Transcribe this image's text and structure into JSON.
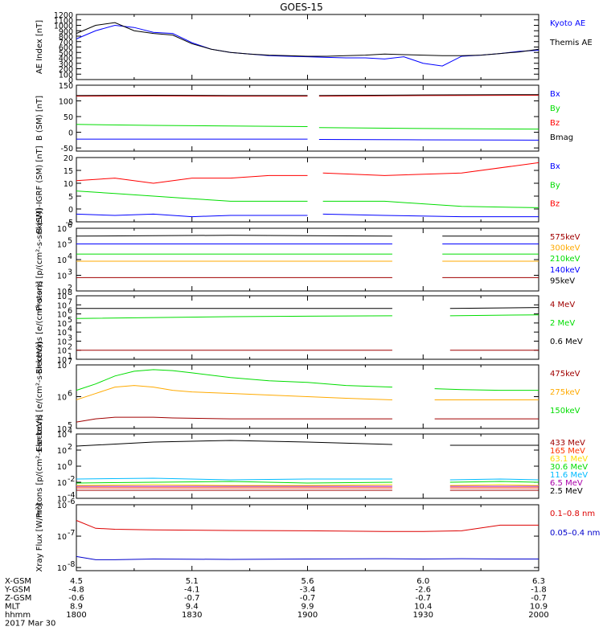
{
  "title": "GOES-15",
  "footer": {
    "rows": [
      {
        "label": "X-GSM",
        "values": [
          "4.5",
          "5.1",
          "5.6",
          "6.0",
          "6.3"
        ]
      },
      {
        "label": "Y-GSM",
        "values": [
          "-4.8",
          "-4.1",
          "-3.4",
          "-2.6",
          "-1.8"
        ]
      },
      {
        "label": "Z-GSM",
        "values": [
          "-0.6",
          "-0.7",
          "-0.7",
          "-0.7",
          "-0.7"
        ]
      },
      {
        "label": "MLT",
        "values": [
          "8.9",
          "9.4",
          "9.9",
          "10.4",
          "10.9"
        ]
      },
      {
        "label": "hhmm",
        "values": [
          "1800",
          "1830",
          "1900",
          "1930",
          "2000"
        ]
      }
    ],
    "date": "2017 Mar 30"
  },
  "chart_data": [
    {
      "type": "line",
      "ylabel": "AE Index [nT]",
      "ylim": [
        0,
        1200
      ],
      "yticks": [
        "0",
        "100",
        "200",
        "300",
        "400",
        "500",
        "600",
        "700",
        "800",
        "900",
        "1000",
        "1100",
        "1200"
      ],
      "x_minutes": [
        0,
        5,
        10,
        15,
        20,
        25,
        30,
        35,
        40,
        45,
        50,
        55,
        60,
        65,
        70,
        75,
        80,
        85,
        90,
        95,
        100,
        105,
        110,
        115,
        120
      ],
      "series": [
        {
          "name": "Kyoto AE",
          "color": "#0000ff",
          "values": [
            750,
            900,
            1000,
            960,
            870,
            850,
            680,
            560,
            500,
            470,
            440,
            430,
            420,
            410,
            400,
            400,
            380,
            420,
            300,
            250,
            430,
            450,
            480,
            520,
            540
          ]
        },
        {
          "name": "Themis AE",
          "color": "#000000",
          "values": [
            850,
            1000,
            1050,
            900,
            850,
            820,
            660,
            560,
            500,
            470,
            450,
            440,
            430,
            430,
            440,
            450,
            470,
            460,
            450,
            440,
            440,
            450,
            480,
            510,
            560
          ]
        }
      ]
    },
    {
      "type": "line",
      "ylabel": "B (SM) [nT]",
      "ylim": [
        -60,
        150
      ],
      "yticks": [
        "-50",
        "0",
        "50",
        "100",
        "150"
      ],
      "gap_minutes": [
        60,
        63
      ],
      "x_minutes": [
        0,
        20,
        40,
        60,
        63,
        90,
        120
      ],
      "series": [
        {
          "name": "Bx",
          "color": "#0000ff",
          "values": [
            -22,
            -22,
            -22,
            -22,
            -23,
            -24,
            -25
          ]
        },
        {
          "name": "By",
          "color": "#00dd00",
          "values": [
            25,
            22,
            20,
            18,
            15,
            12,
            10
          ]
        },
        {
          "name": "Bz",
          "color": "#ff0000",
          "values": [
            115,
            116,
            115,
            115,
            115,
            117,
            118
          ]
        },
        {
          "name": "Bmag",
          "color": "#000000",
          "values": [
            117,
            118,
            117,
            117,
            117,
            119,
            120
          ]
        }
      ]
    },
    {
      "type": "line",
      "ylabel": "B (SM)-IGRF (SM) [nT]",
      "ylim": [
        -5,
        20
      ],
      "yticks": [
        "-5",
        "0",
        "5",
        "10",
        "15",
        "20"
      ],
      "gap_minutes": [
        60,
        64
      ],
      "x_minutes": [
        0,
        10,
        20,
        30,
        40,
        50,
        60,
        64,
        80,
        100,
        120
      ],
      "series": [
        {
          "name": "Bx",
          "color": "#0000ff",
          "values": [
            -2,
            -2.5,
            -2,
            -3,
            -2.5,
            -2.5,
            -2.5,
            -2,
            -2.5,
            -3,
            -3
          ]
        },
        {
          "name": "By",
          "color": "#00dd00",
          "values": [
            7,
            6,
            5,
            4,
            3,
            3,
            3,
            3,
            3,
            1,
            0.5
          ]
        },
        {
          "name": "Bz",
          "color": "#ff0000",
          "values": [
            11,
            12,
            10,
            12,
            12,
            13,
            13,
            14,
            13,
            14,
            18
          ]
        }
      ]
    },
    {
      "type": "line",
      "ylabel": "Protons [p/(cm²-s-sr-keV)]",
      "yscale": "log",
      "ylim_exp": [
        2,
        6
      ],
      "yticks_exp": [
        2,
        3,
        4,
        5,
        6
      ],
      "gap_minutes": [
        82,
        95
      ],
      "x_minutes": [
        0,
        40,
        82,
        95,
        120
      ],
      "series": [
        {
          "name": "575keV",
          "color": "#a00000",
          "values_log10": [
            2.85,
            2.85,
            2.85,
            2.85,
            2.85
          ]
        },
        {
          "name": "300keV",
          "color": "#ffaa00",
          "values_log10": [
            3.9,
            3.9,
            3.9,
            3.9,
            3.9
          ]
        },
        {
          "name": "210keV",
          "color": "#00dd00",
          "values_log10": [
            4.35,
            4.35,
            4.35,
            4.35,
            4.35
          ]
        },
        {
          "name": "140keV",
          "color": "#0000ff",
          "values_log10": [
            5.0,
            5.0,
            5.0,
            5.0,
            5.0
          ]
        },
        {
          "name": "95keV",
          "color": "#000000",
          "values_log10": [
            5.5,
            5.55,
            5.5,
            5.5,
            5.5
          ]
        }
      ]
    },
    {
      "type": "line",
      "ylabel": "Electrons [e/(cm²-s-sr)]",
      "yscale": "log",
      "ylim_exp": [
        1,
        8
      ],
      "yticks_exp": [
        1,
        2,
        3,
        4,
        5,
        6,
        7,
        8
      ],
      "gap_minutes": [
        82,
        97
      ],
      "x_minutes": [
        0,
        40,
        82,
        97,
        120
      ],
      "series": [
        {
          "name": "4 MeV",
          "color": "#a00000",
          "values_log10": [
            2.0,
            2.0,
            2.0,
            2.0,
            2.0
          ]
        },
        {
          "name": "2 MeV",
          "color": "#00dd00",
          "values_log10": [
            5.5,
            5.7,
            5.8,
            5.8,
            5.9
          ]
        },
        {
          "name": "0.6 MeV",
          "color": "#000000",
          "values_log10": [
            6.6,
            6.6,
            6.6,
            6.6,
            6.7
          ]
        }
      ]
    },
    {
      "type": "line",
      "ylabel": "Electrons [e/(cm²-s-sr-keV)]",
      "yscale": "log",
      "ylim_exp": [
        5,
        7
      ],
      "yticks_exp": [
        5,
        6,
        7
      ],
      "gap_minutes": [
        82,
        93
      ],
      "x_minutes": [
        0,
        5,
        10,
        15,
        20,
        25,
        30,
        40,
        50,
        60,
        70,
        82,
        93,
        100,
        110,
        120
      ],
      "series": [
        {
          "name": "475keV",
          "color": "#a00000",
          "values_log10": [
            5.2,
            5.3,
            5.35,
            5.35,
            5.35,
            5.33,
            5.32,
            5.3,
            5.3,
            5.3,
            5.3,
            5.3,
            5.3,
            5.3,
            5.3,
            5.3
          ]
        },
        {
          "name": "275keV",
          "color": "#ffaa00",
          "values_log10": [
            5.9,
            6.1,
            6.3,
            6.35,
            6.3,
            6.2,
            6.15,
            6.1,
            6.05,
            6.0,
            5.95,
            5.9,
            5.9,
            5.9,
            5.9,
            5.9
          ]
        },
        {
          "name": "150keV",
          "color": "#00dd00",
          "values_log10": [
            6.2,
            6.4,
            6.65,
            6.8,
            6.85,
            6.82,
            6.75,
            6.6,
            6.5,
            6.45,
            6.35,
            6.3,
            6.25,
            6.22,
            6.2,
            6.2
          ]
        }
      ]
    },
    {
      "type": "line",
      "ylabel": "Protons [p/(cm²-s-sr-keV)]",
      "yscale": "log",
      "ylim_exp": [
        -4,
        4
      ],
      "yticks_exp": [
        -4,
        -2,
        0,
        2,
        4
      ],
      "gap_minutes": [
        82,
        97
      ],
      "x_minutes": [
        0,
        20,
        40,
        60,
        82,
        97,
        110,
        120
      ],
      "series": [
        {
          "name": "433 MeV",
          "color": "#a00000",
          "values_log10": [
            -3.0,
            -3.0,
            -3.0,
            -3.0,
            -3.0,
            -3.0,
            -3.0,
            -3.0
          ]
        },
        {
          "name": "165 MeV",
          "color": "#ff3300",
          "values_log10": [
            -2.7,
            -2.7,
            -2.7,
            -2.7,
            -2.7,
            -2.7,
            -2.7,
            -2.7
          ]
        },
        {
          "name": "63.1 MeV",
          "color": "#ffdd00",
          "values_log10": [
            -2.4,
            -2.3,
            -2.4,
            -2.4,
            -2.3,
            -2.4,
            -2.3,
            -2.4
          ]
        },
        {
          "name": "30.6 MeV",
          "color": "#00dd00",
          "values_log10": [
            -2.1,
            -2.0,
            -1.9,
            -2.1,
            -2.0,
            -2.0,
            -1.9,
            -2.0
          ]
        },
        {
          "name": "11.6 MeV",
          "color": "#00bbff",
          "values_log10": [
            -1.6,
            -1.5,
            -1.7,
            -1.6,
            -1.6,
            -1.7,
            -1.6,
            -1.7
          ]
        },
        {
          "name": "6.5 MeV",
          "color": "#aa00aa",
          "values_log10": [
            -2.5,
            -2.5,
            -2.5,
            -2.5,
            -2.5,
            -2.5,
            -2.5,
            -2.5
          ]
        },
        {
          "name": "2.5 MeV",
          "color": "#000000",
          "values_log10": [
            2.5,
            3.0,
            3.2,
            3.0,
            2.7,
            2.6,
            2.6,
            2.6
          ]
        }
      ]
    },
    {
      "type": "line",
      "ylabel": "Xray Flux [W/m²]",
      "yscale": "log",
      "ylim_exp": [
        -8.1,
        -6
      ],
      "yticks_exp": [
        -8,
        -7,
        -6
      ],
      "x_minutes": [
        0,
        5,
        10,
        20,
        40,
        60,
        80,
        90,
        100,
        110,
        120
      ],
      "series": [
        {
          "name": "0.1–0.8 nm",
          "color": "#dd0000",
          "values_log10": [
            -6.5,
            -6.75,
            -6.78,
            -6.8,
            -6.82,
            -6.83,
            -6.85,
            -6.85,
            -6.83,
            -6.65,
            -6.65
          ]
        },
        {
          "name": "0.05–0.4 nm",
          "color": "#0000cc",
          "values_log10": [
            -7.65,
            -7.75,
            -7.75,
            -7.73,
            -7.74,
            -7.73,
            -7.72,
            -7.73,
            -7.72,
            -7.73,
            -7.73
          ]
        }
      ]
    }
  ]
}
